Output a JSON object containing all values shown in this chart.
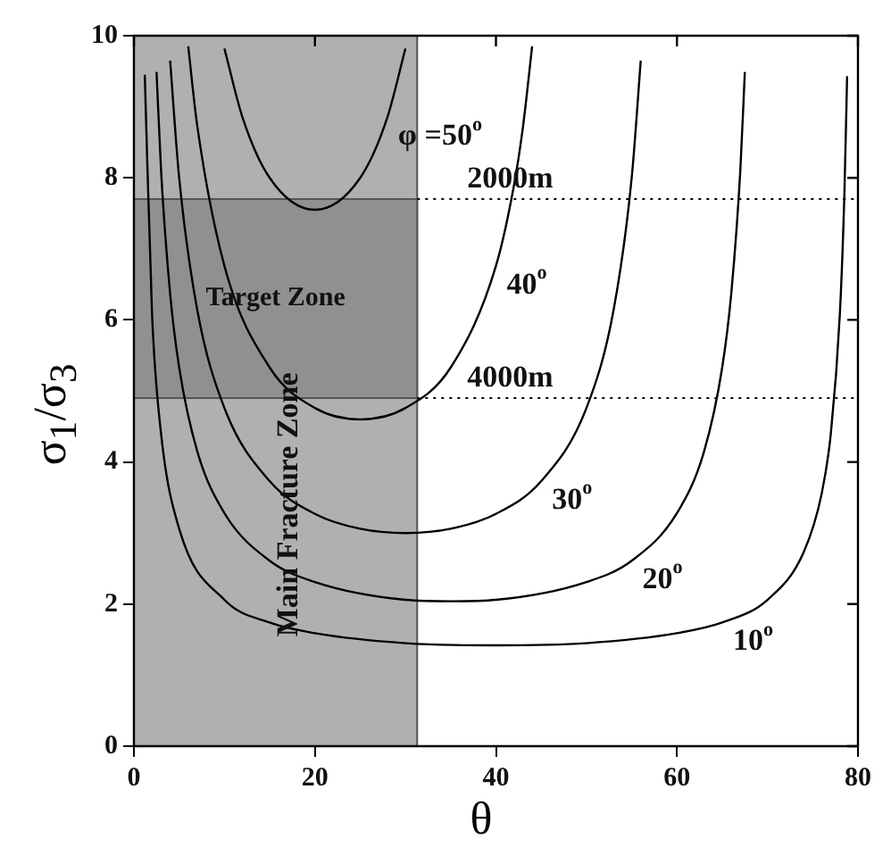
{
  "chart_data": {
    "type": "line",
    "xlabel": "θ",
    "ylabel": "σ$_{1}$/σ$_{3}$",
    "xlim": [
      0,
      80
    ],
    "ylim": [
      0,
      10
    ],
    "xticks": [
      0,
      20,
      40,
      60,
      80
    ],
    "yticks": [
      0,
      2,
      4,
      6,
      8,
      10
    ],
    "grid": false,
    "legend": false,
    "marker": "none",
    "line_style": "solid",
    "series": [
      {
        "color": "#000000",
        "x": [
          1.2,
          2,
          3,
          5,
          10,
          15,
          20,
          30,
          40,
          50,
          60,
          65,
          70,
          74,
          76,
          77,
          78,
          78.5,
          78.8
        ],
        "values": [
          9.45,
          6.09,
          4.4,
          3.06,
          2.06,
          1.74,
          1.59,
          1.45,
          1.42,
          1.45,
          1.59,
          1.74,
          2.06,
          2.73,
          3.56,
          4.4,
          6.08,
          7.77,
          9.43
        ]
      },
      {
        "color": "#000000",
        "x": [
          2.5,
          3,
          4,
          5,
          7,
          10,
          15,
          20,
          30,
          35,
          40,
          50,
          55,
          60,
          63,
          65,
          66,
          67,
          67.5
        ],
        "values": [
          9.49,
          8.1,
          6.37,
          5.33,
          4.15,
          3.28,
          2.61,
          2.31,
          2.06,
          2.04,
          2.06,
          2.31,
          2.61,
          3.28,
          4.15,
          5.33,
          6.37,
          8.1,
          9.49
        ]
      },
      {
        "color": "#000000",
        "x": [
          4,
          5,
          7,
          10,
          15,
          20,
          25,
          30,
          35,
          40,
          45,
          50,
          53,
          55,
          56
        ],
        "values": [
          9.65,
          8,
          6.14,
          4.76,
          3.73,
          3.27,
          3.06,
          3,
          3.06,
          3.27,
          3.73,
          4.76,
          6.14,
          8,
          9.65
        ]
      },
      {
        "color": "#000000",
        "x": [
          6,
          7,
          10,
          15,
          20,
          25,
          30,
          35,
          40,
          42,
          43,
          44
        ],
        "values": [
          9.85,
          8.73,
          6.76,
          5.33,
          4.76,
          4.6,
          4.76,
          5.33,
          6.76,
          7.9,
          8.73,
          9.85
        ]
      },
      {
        "color": "#000000",
        "x": [
          10,
          12,
          15,
          20,
          25,
          28,
          30
        ],
        "values": [
          9.82,
          8.85,
          8,
          7.55,
          8,
          8.85,
          9.82
        ]
      }
    ],
    "bands": [
      {
        "axis": "x",
        "from": 0,
        "to": 31.3,
        "label": "Main Fracture Zone",
        "color": "#b0b0b0"
      },
      {
        "axis": "y",
        "from": 4.9,
        "to": 7.7,
        "label": "Target Zone",
        "color": "#909090"
      }
    ],
    "ref_lines": [
      {
        "axis": "y",
        "value": 7.7,
        "label": "2000m",
        "line_style": "dotted",
        "color": "#000000"
      },
      {
        "axis": "y",
        "value": 4.9,
        "label": "4000m",
        "line_style": "dotted",
        "color": "#000000"
      }
    ],
    "annotations": [
      {
        "text": "φ =50$^{o}$",
        "x": 28,
        "y": 8.85
      },
      {
        "text": "40$^{o}$",
        "x": 40,
        "y": 6.76
      },
      {
        "text": "30$^{o}$",
        "x": 45,
        "y": 3.73
      },
      {
        "text": "20$^{o}$",
        "x": 55,
        "y": 2.61
      },
      {
        "text": "10$^{o}$",
        "x": 65,
        "y": 1.74
      }
    ]
  }
}
